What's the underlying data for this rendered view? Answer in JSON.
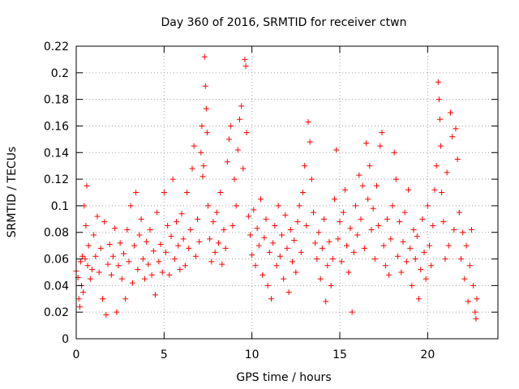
{
  "chart_data": {
    "type": "scatter",
    "title": "Day 360 of 2016, SRMTID for receiver ctwn",
    "xlabel": "GPS time / hours",
    "ylabel": "SRMTID / TECUs",
    "xlim": [
      0,
      24
    ],
    "ylim": [
      0,
      0.22
    ],
    "x_ticks": [
      0,
      5,
      10,
      15,
      20
    ],
    "x_tick_labels": [
      "0",
      "5",
      "10",
      "15",
      "20"
    ],
    "y_ticks": [
      0,
      0.02,
      0.04,
      0.06,
      0.08,
      0.1,
      0.12,
      0.14,
      0.16,
      0.18,
      0.2,
      0.22
    ],
    "y_tick_labels": [
      "0",
      "0.02",
      "0.04",
      "0.06",
      "0.08",
      "0.1",
      "0.12",
      "0.14",
      "0.16",
      "0.18",
      "0.2",
      "0.22"
    ],
    "grid": true,
    "marker": "+",
    "color": "#ff0000",
    "series": [
      {
        "name": "SRMTID",
        "points": [
          [
            0.0,
            0.051
          ],
          [
            0.1,
            0.046
          ],
          [
            0.15,
            0.03
          ],
          [
            0.2,
            0.024
          ],
          [
            0.25,
            0.058
          ],
          [
            0.3,
            0.04
          ],
          [
            0.35,
            0.062
          ],
          [
            0.4,
            0.035
          ],
          [
            0.45,
            0.1
          ],
          [
            0.5,
            0.06
          ],
          [
            0.55,
            0.085
          ],
          [
            0.6,
            0.115
          ],
          [
            0.65,
            0.055
          ],
          [
            0.7,
            0.07
          ],
          [
            0.8,
            0.045
          ],
          [
            0.9,
            0.052
          ],
          [
            1.0,
            0.078
          ],
          [
            1.1,
            0.062
          ],
          [
            1.2,
            0.092
          ],
          [
            1.3,
            0.05
          ],
          [
            1.4,
            0.068
          ],
          [
            1.5,
            0.03
          ],
          [
            1.6,
            0.088
          ],
          [
            1.7,
            0.018
          ],
          [
            1.8,
            0.056
          ],
          [
            1.9,
            0.071
          ],
          [
            2.0,
            0.048
          ],
          [
            2.1,
            0.062
          ],
          [
            2.2,
            0.083
          ],
          [
            2.3,
            0.02
          ],
          [
            2.4,
            0.055
          ],
          [
            2.5,
            0.072
          ],
          [
            2.6,
            0.045
          ],
          [
            2.7,
            0.064
          ],
          [
            2.8,
            0.03
          ],
          [
            2.9,
            0.082
          ],
          [
            3.0,
            0.058
          ],
          [
            3.1,
            0.1
          ],
          [
            3.2,
            0.042
          ],
          [
            3.3,
            0.07
          ],
          [
            3.4,
            0.11
          ],
          [
            3.5,
            0.052
          ],
          [
            3.6,
            0.078
          ],
          [
            3.7,
            0.09
          ],
          [
            3.8,
            0.06
          ],
          [
            3.9,
            0.045
          ],
          [
            4.0,
            0.073
          ],
          [
            4.1,
            0.056
          ],
          [
            4.2,
            0.082
          ],
          [
            4.3,
            0.048
          ],
          [
            4.4,
            0.066
          ],
          [
            4.5,
            0.033
          ],
          [
            4.6,
            0.095
          ],
          [
            4.7,
            0.058
          ],
          [
            4.8,
            0.071
          ],
          [
            4.9,
            0.05
          ],
          [
            5.0,
            0.11
          ],
          [
            5.1,
            0.065
          ],
          [
            5.2,
            0.085
          ],
          [
            5.3,
            0.048
          ],
          [
            5.4,
            0.077
          ],
          [
            5.5,
            0.12
          ],
          [
            5.6,
            0.06
          ],
          [
            5.7,
            0.088
          ],
          [
            5.8,
            0.07
          ],
          [
            5.9,
            0.052
          ],
          [
            6.0,
            0.094
          ],
          [
            6.1,
            0.075
          ],
          [
            6.2,
            0.055
          ],
          [
            6.3,
            0.11
          ],
          [
            6.4,
            0.068
          ],
          [
            6.5,
            0.082
          ],
          [
            6.6,
            0.128
          ],
          [
            6.7,
            0.145
          ],
          [
            6.8,
            0.062
          ],
          [
            6.9,
            0.09
          ],
          [
            7.0,
            0.073
          ],
          [
            7.1,
            0.14
          ],
          [
            7.15,
            0.16
          ],
          [
            7.2,
            0.122
          ],
          [
            7.25,
            0.13
          ],
          [
            7.3,
            0.212
          ],
          [
            7.35,
            0.19
          ],
          [
            7.4,
            0.173
          ],
          [
            7.45,
            0.155
          ],
          [
            7.5,
            0.1
          ],
          [
            7.6,
            0.075
          ],
          [
            7.7,
            0.058
          ],
          [
            7.8,
            0.088
          ],
          [
            7.9,
            0.065
          ],
          [
            8.0,
            0.095
          ],
          [
            8.1,
            0.072
          ],
          [
            8.2,
            0.11
          ],
          [
            8.3,
            0.056
          ],
          [
            8.4,
            0.082
          ],
          [
            8.5,
            0.068
          ],
          [
            8.6,
            0.133
          ],
          [
            8.7,
            0.15
          ],
          [
            8.8,
            0.16
          ],
          [
            8.9,
            0.085
          ],
          [
            9.0,
            0.12
          ],
          [
            9.1,
            0.1
          ],
          [
            9.2,
            0.142
          ],
          [
            9.3,
            0.165
          ],
          [
            9.4,
            0.175
          ],
          [
            9.5,
            0.128
          ],
          [
            9.6,
            0.21
          ],
          [
            9.65,
            0.205
          ],
          [
            9.7,
            0.155
          ],
          [
            9.8,
            0.092
          ],
          [
            9.9,
            0.078
          ],
          [
            10.0,
            0.063
          ],
          [
            10.1,
            0.097
          ],
          [
            10.2,
            0.055
          ],
          [
            10.3,
            0.083
          ],
          [
            10.4,
            0.07
          ],
          [
            10.5,
            0.105
          ],
          [
            10.6,
            0.048
          ],
          [
            10.7,
            0.076
          ],
          [
            10.8,
            0.09
          ],
          [
            10.9,
            0.04
          ],
          [
            11.0,
            0.065
          ],
          [
            11.1,
            0.03
          ],
          [
            11.2,
            0.072
          ],
          [
            11.3,
            0.085
          ],
          [
            11.4,
            0.055
          ],
          [
            11.5,
            0.1
          ],
          [
            11.6,
            0.062
          ],
          [
            11.7,
            0.078
          ],
          [
            11.8,
            0.045
          ],
          [
            11.9,
            0.093
          ],
          [
            12.0,
            0.068
          ],
          [
            12.1,
            0.035
          ],
          [
            12.2,
            0.082
          ],
          [
            12.3,
            0.058
          ],
          [
            12.4,
            0.074
          ],
          [
            12.5,
            0.05
          ],
          [
            12.6,
            0.088
          ],
          [
            12.7,
            0.1
          ],
          [
            12.8,
            0.065
          ],
          [
            12.9,
            0.11
          ],
          [
            13.0,
            0.13
          ],
          [
            13.1,
            0.085
          ],
          [
            13.2,
            0.163
          ],
          [
            13.3,
            0.148
          ],
          [
            13.4,
            0.12
          ],
          [
            13.5,
            0.095
          ],
          [
            13.6,
            0.072
          ],
          [
            13.7,
            0.06
          ],
          [
            13.8,
            0.08
          ],
          [
            13.9,
            0.045
          ],
          [
            14.0,
            0.068
          ],
          [
            14.1,
            0.09
          ],
          [
            14.2,
            0.028
          ],
          [
            14.3,
            0.055
          ],
          [
            14.4,
            0.073
          ],
          [
            14.5,
            0.04
          ],
          [
            14.6,
            0.06
          ],
          [
            14.7,
            0.105
          ],
          [
            14.8,
            0.142
          ],
          [
            14.9,
            0.075
          ],
          [
            15.0,
            0.088
          ],
          [
            15.1,
            0.058
          ],
          [
            15.2,
            0.095
          ],
          [
            15.3,
            0.112
          ],
          [
            15.4,
            0.07
          ],
          [
            15.5,
            0.05
          ],
          [
            15.6,
            0.083
          ],
          [
            15.7,
            0.02
          ],
          [
            15.8,
            0.065
          ],
          [
            15.9,
            0.1
          ],
          [
            16.0,
            0.078
          ],
          [
            16.1,
            0.123
          ],
          [
            16.2,
            0.09
          ],
          [
            16.3,
            0.115
          ],
          [
            16.4,
            0.068
          ],
          [
            16.5,
            0.147
          ],
          [
            16.6,
            0.105
          ],
          [
            16.7,
            0.13
          ],
          [
            16.8,
            0.082
          ],
          [
            16.9,
            0.098
          ],
          [
            17.0,
            0.06
          ],
          [
            17.1,
            0.115
          ],
          [
            17.2,
            0.085
          ],
          [
            17.3,
            0.145
          ],
          [
            17.4,
            0.155
          ],
          [
            17.5,
            0.07
          ],
          [
            17.6,
            0.055
          ],
          [
            17.7,
            0.09
          ],
          [
            17.8,
            0.048
          ],
          [
            17.9,
            0.075
          ],
          [
            18.0,
            0.1
          ],
          [
            18.1,
            0.14
          ],
          [
            18.2,
            0.12
          ],
          [
            18.3,
            0.062
          ],
          [
            18.4,
            0.088
          ],
          [
            18.5,
            0.05
          ],
          [
            18.6,
            0.073
          ],
          [
            18.7,
            0.095
          ],
          [
            18.8,
            0.058
          ],
          [
            18.9,
            0.112
          ],
          [
            19.0,
            0.068
          ],
          [
            19.1,
            0.04
          ],
          [
            19.2,
            0.082
          ],
          [
            19.3,
            0.06
          ],
          [
            19.4,
            0.077
          ],
          [
            19.5,
            0.03
          ],
          [
            19.6,
            0.052
          ],
          [
            19.7,
            0.09
          ],
          [
            19.8,
            0.065
          ],
          [
            19.9,
            0.045
          ],
          [
            20.0,
            0.1
          ],
          [
            20.1,
            0.07
          ],
          [
            20.2,
            0.055
          ],
          [
            20.3,
            0.085
          ],
          [
            20.4,
            0.112
          ],
          [
            20.5,
            0.13
          ],
          [
            20.6,
            0.193
          ],
          [
            20.65,
            0.18
          ],
          [
            20.7,
            0.165
          ],
          [
            20.75,
            0.145
          ],
          [
            20.8,
            0.11
          ],
          [
            20.9,
            0.088
          ],
          [
            21.0,
            0.06
          ],
          [
            21.1,
            0.125
          ],
          [
            21.2,
            0.07
          ],
          [
            21.3,
            0.17
          ],
          [
            21.4,
            0.152
          ],
          [
            21.5,
            0.082
          ],
          [
            21.6,
            0.158
          ],
          [
            21.7,
            0.135
          ],
          [
            21.8,
            0.095
          ],
          [
            21.9,
            0.06
          ],
          [
            22.0,
            0.08
          ],
          [
            22.1,
            0.045
          ],
          [
            22.2,
            0.07
          ],
          [
            22.3,
            0.028
          ],
          [
            22.4,
            0.055
          ],
          [
            22.5,
            0.082
          ],
          [
            22.6,
            0.04
          ],
          [
            22.7,
            0.02
          ],
          [
            22.75,
            0.015
          ],
          [
            22.8,
            0.03
          ]
        ]
      }
    ]
  }
}
